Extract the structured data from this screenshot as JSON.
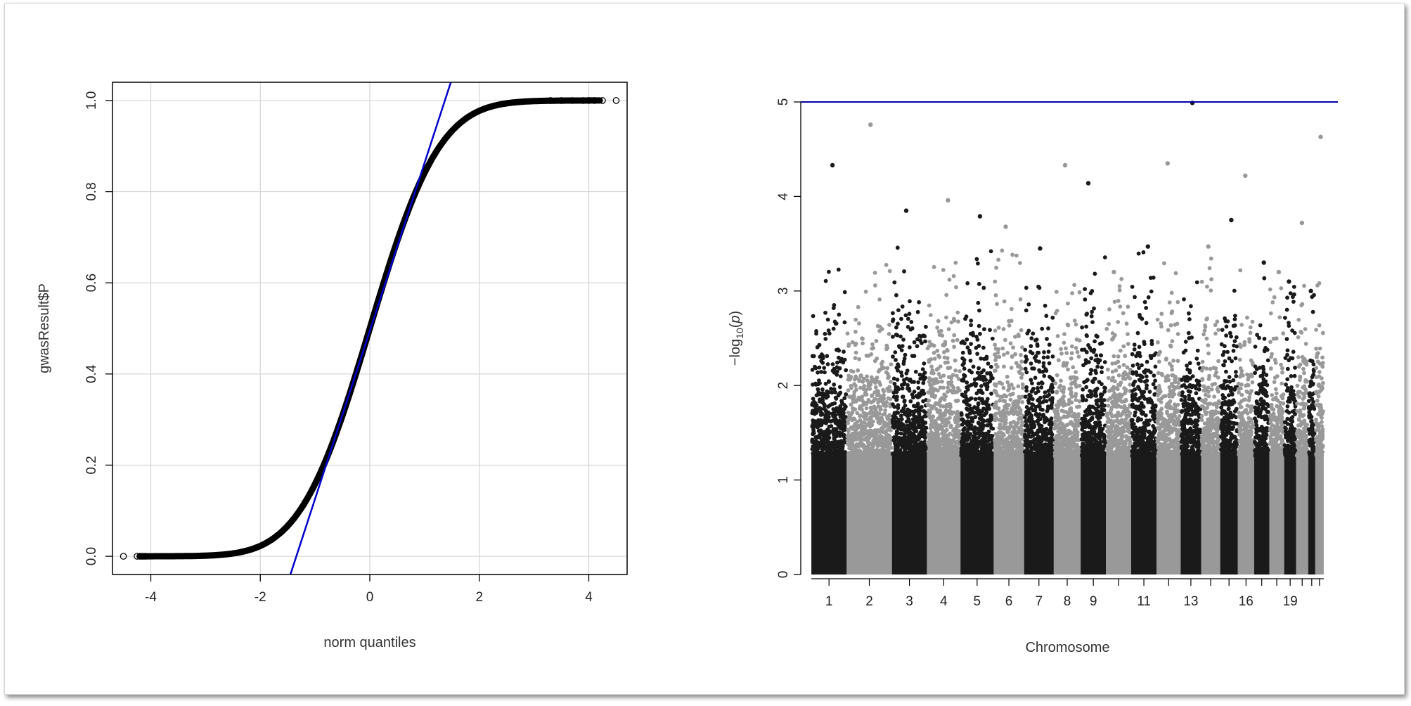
{
  "chart_data": [
    {
      "type": "scatter",
      "subtype": "qq-plot",
      "xlabel": "norm quantiles",
      "ylabel": "gwasResult$P",
      "xlim": [
        -4.7,
        4.7
      ],
      "ylim": [
        -0.04,
        1.04
      ],
      "xticks": [
        "-4",
        "-2",
        "0",
        "2",
        "4"
      ],
      "xtick_values": [
        -4,
        -2,
        0,
        2,
        4
      ],
      "yticks": [
        "0.0",
        "0.2",
        "0.4",
        "0.6",
        "0.8",
        "1.0"
      ],
      "ytick_values": [
        0,
        0.2,
        0.4,
        0.6,
        0.8,
        1.0
      ],
      "grid": true,
      "marker": "open-circle",
      "point_color": "#000000",
      "reference_line": {
        "color": "#0000cc",
        "points": [
          [
            -1.45,
            -0.04
          ],
          [
            1.48,
            1.04
          ]
        ]
      },
      "curve": {
        "description": "uniform P-values vs normal quantiles",
        "x_range": [
          -4.5,
          4.5
        ]
      },
      "tail_points": {
        "x": [
          -4.5,
          -4.25,
          -4.2,
          -4.15,
          -4.1,
          3.3,
          3.5,
          3.7,
          3.9,
          4.0,
          4.1,
          4.25,
          4.5
        ],
        "y": [
          0,
          0,
          0,
          0,
          0,
          1,
          1,
          1,
          1,
          1,
          1,
          1,
          1
        ]
      }
    },
    {
      "type": "scatter",
      "subtype": "manhattan",
      "xlabel": "Chromosome",
      "ylabel_parts": [
        "−log",
        "10",
        "(",
        "p",
        ")"
      ],
      "ylim": [
        0,
        5
      ],
      "yticks": [
        "0",
        "1",
        "2",
        "3",
        "4",
        "5"
      ],
      "ytick_values": [
        0,
        1,
        2,
        3,
        4,
        5
      ],
      "xtick_labels": [
        "1",
        "2",
        "3",
        "4",
        "5",
        "6",
        "7",
        "8",
        "9",
        "11",
        "13",
        "16",
        "19"
      ],
      "xtick_chromosomes": [
        1,
        2,
        3,
        4,
        5,
        6,
        7,
        8,
        9,
        11,
        13,
        16,
        19
      ],
      "colors": [
        "#1a1a1a",
        "#999999"
      ],
      "threshold_line": {
        "y": 5,
        "color": "#0000aa"
      },
      "chromosomes": [
        {
          "chr": 1,
          "start": 0,
          "end": 1.0,
          "peak": 4.33
        },
        {
          "chr": 2,
          "start": 1.0,
          "end": 2.28,
          "peak": 4.76
        },
        {
          "chr": 3,
          "start": 2.28,
          "end": 3.27,
          "peak": 3.85
        },
        {
          "chr": 4,
          "start": 3.27,
          "end": 4.22,
          "peak": 3.96
        },
        {
          "chr": 5,
          "start": 4.22,
          "end": 5.16,
          "peak": 3.79
        },
        {
          "chr": 6,
          "start": 5.16,
          "end": 6.02,
          "peak": 3.68
        },
        {
          "chr": 7,
          "start": 6.02,
          "end": 6.86,
          "peak": 3.45
        },
        {
          "chr": 8,
          "start": 6.86,
          "end": 7.62,
          "peak": 4.33
        },
        {
          "chr": 9,
          "start": 7.62,
          "end": 8.34,
          "peak": 4.14
        },
        {
          "chr": 10,
          "start": 8.34,
          "end": 9.05,
          "peak": 3.2
        },
        {
          "chr": 11,
          "start": 9.05,
          "end": 9.77,
          "peak": 3.47
        },
        {
          "chr": 12,
          "start": 9.77,
          "end": 10.45,
          "peak": 4.35
        },
        {
          "chr": 13,
          "start": 10.45,
          "end": 11.03,
          "peak": 4.99
        },
        {
          "chr": 14,
          "start": 11.03,
          "end": 11.57,
          "peak": 3.47
        },
        {
          "chr": 15,
          "start": 11.57,
          "end": 12.07,
          "peak": 3.75
        },
        {
          "chr": 16,
          "start": 12.07,
          "end": 12.53,
          "peak": 4.22
        },
        {
          "chr": 17,
          "start": 12.53,
          "end": 12.96,
          "peak": 3.3
        },
        {
          "chr": 18,
          "start": 12.96,
          "end": 13.38,
          "peak": 3.2
        },
        {
          "chr": 19,
          "start": 13.38,
          "end": 13.72,
          "peak": 3.1
        },
        {
          "chr": 20,
          "start": 13.72,
          "end": 14.06,
          "peak": 3.72
        },
        {
          "chr": 21,
          "start": 14.06,
          "end": 14.26,
          "peak": 3.0
        },
        {
          "chr": 22,
          "start": 14.26,
          "end": 14.5,
          "peak": 4.63
        }
      ],
      "xlim_genome": [
        -0.3,
        14.9
      ]
    }
  ]
}
